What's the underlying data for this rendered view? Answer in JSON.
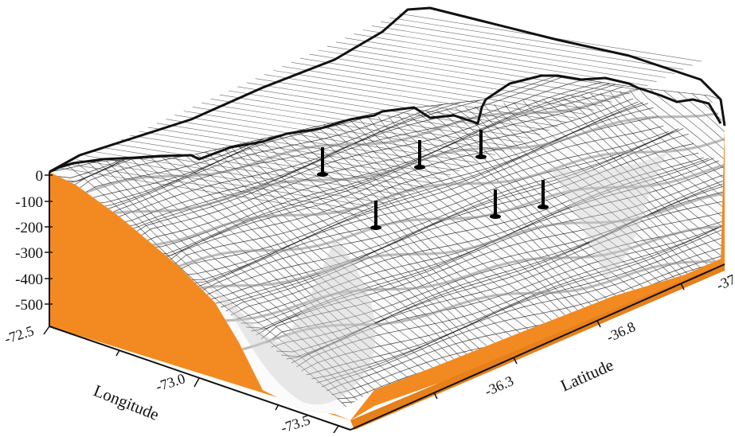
{
  "figure": {
    "colors": {
      "wall": "#f28a21",
      "surface": "#fbfbfb",
      "mesh": "#1a1a1a",
      "contour": "#8f8f8f",
      "coast": "#111111",
      "marker": "#000000"
    },
    "depth_axis": {
      "ticks": [
        "0",
        "-100",
        "-200",
        "-300",
        "-400",
        "-500"
      ]
    },
    "longitude_axis": {
      "title": "Longitude",
      "ticks": [
        "-72.5",
        "-73.0",
        "-73.5"
      ]
    },
    "latitude_axis": {
      "title": "Latitude",
      "ticks": [
        "-36.3",
        "-36.8",
        "-37"
      ]
    },
    "station_markers": 6
  }
}
